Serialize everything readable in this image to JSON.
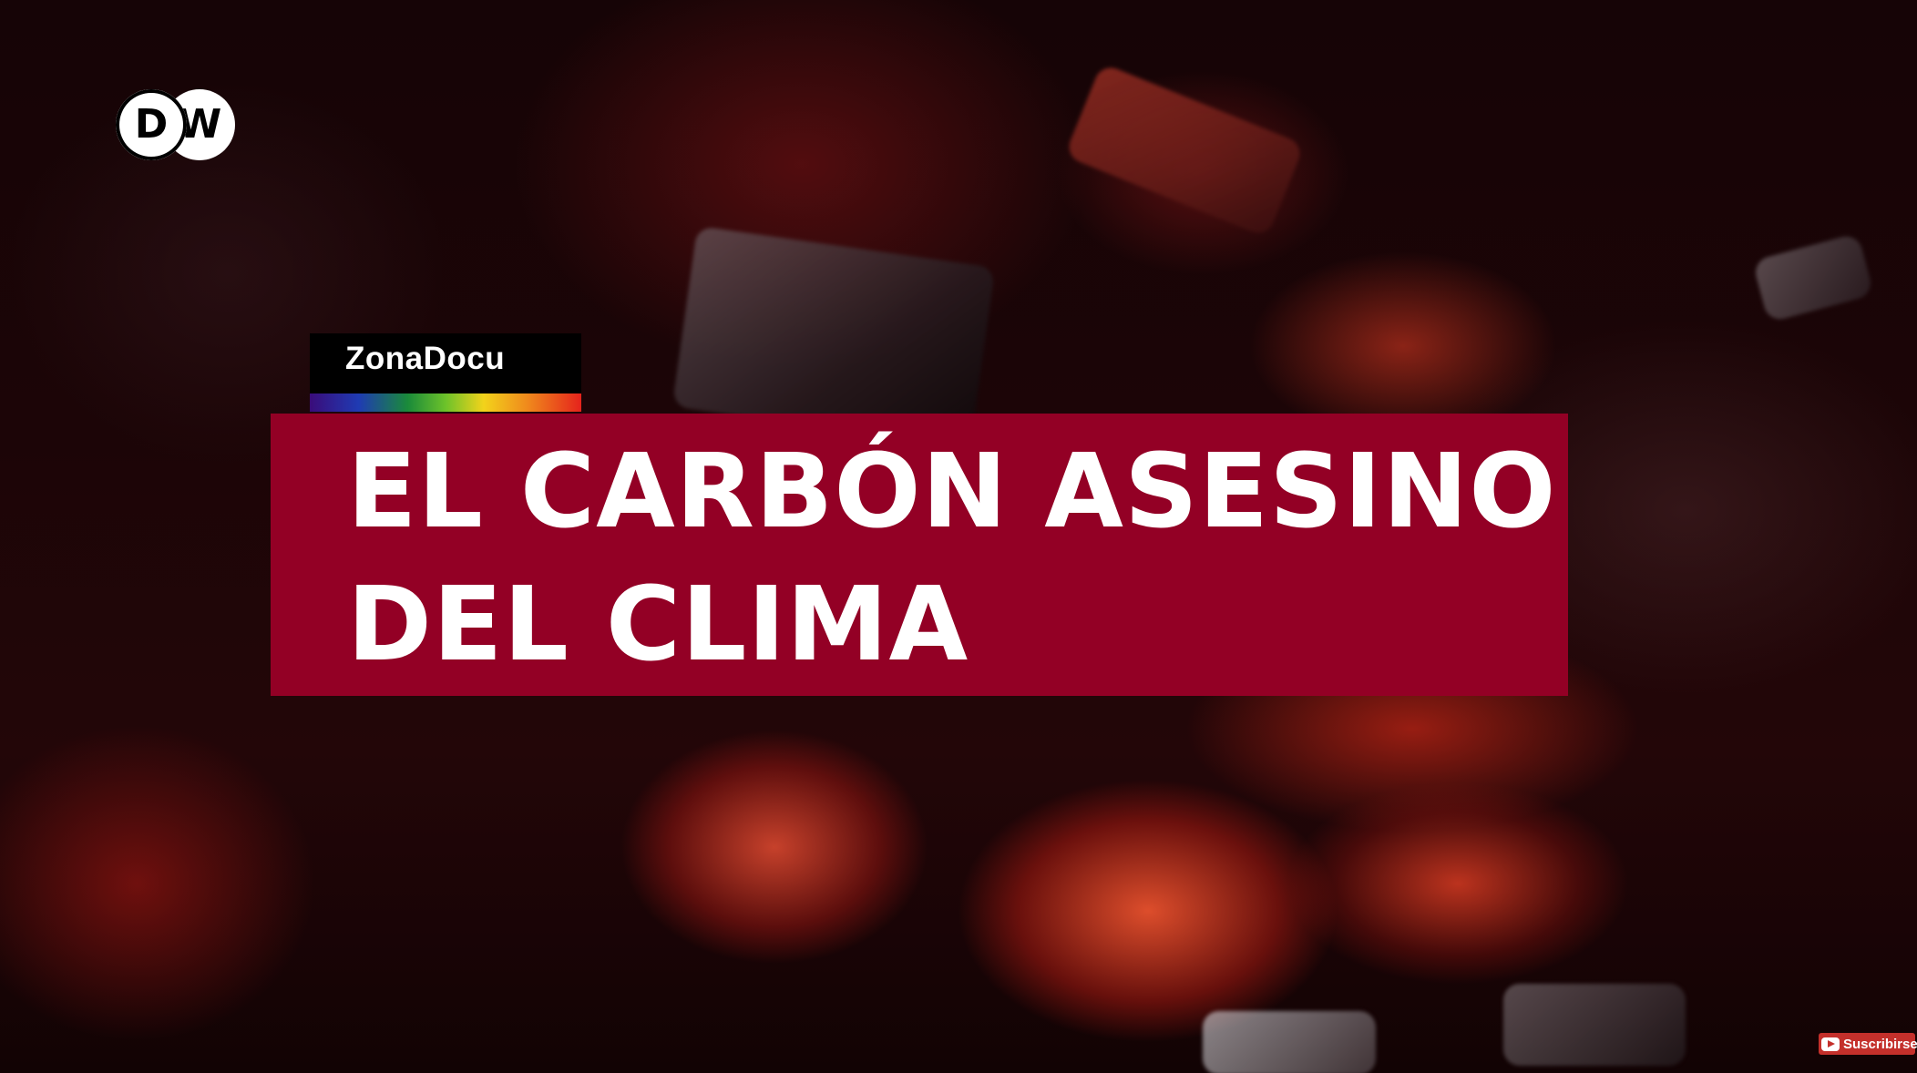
{
  "logo": {
    "letter_d": "D",
    "letter_w": "W"
  },
  "program_tag": {
    "label": "ZonaDocu"
  },
  "title": {
    "line1": "EL CARBÓN ASESINO",
    "line2": "DEL CLIMA"
  },
  "subscribe": {
    "label": "Suscribirse",
    "icon": "youtube-icon"
  },
  "colors": {
    "title_band": "#930025",
    "tag_background": "#000000",
    "subscribe_red": "#c4302b",
    "rainbow": [
      "#3a0c7a",
      "#1f3bb3",
      "#1a8a3a",
      "#6cc22a",
      "#f2d31b",
      "#f08a1c",
      "#e5231c"
    ]
  }
}
